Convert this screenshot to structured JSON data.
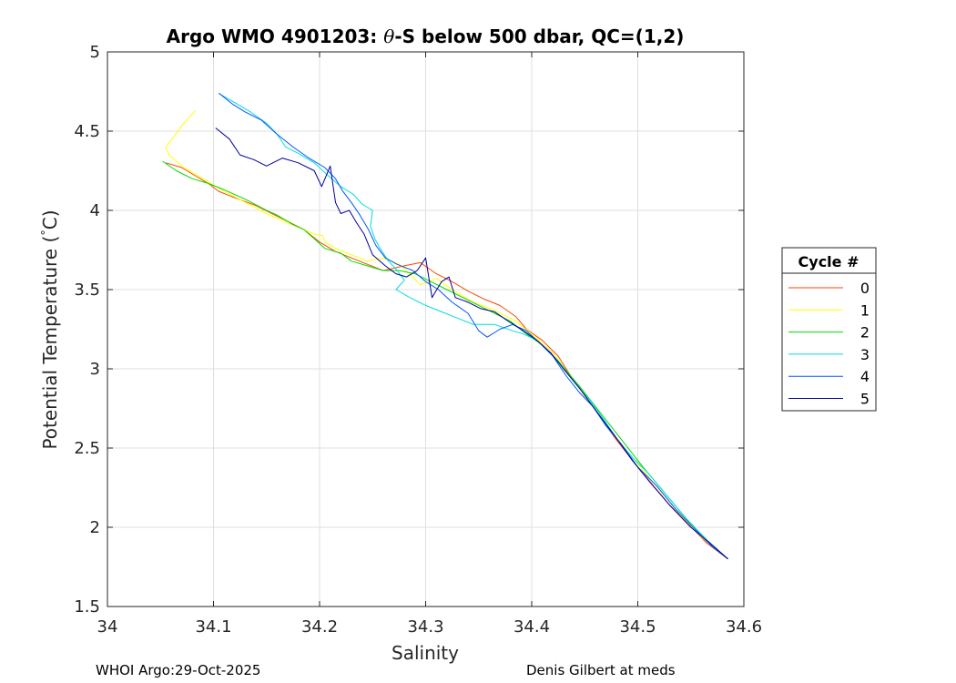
{
  "chart_data": {
    "type": "line",
    "title_prefix": "Argo WMO 4901203: ",
    "title_theta": "θ",
    "title_suffix": "-S below 500 dbar,  QC=(1,2)",
    "xlabel": "Salinity",
    "ylabel_prefix": "Potential Temperature (",
    "ylabel_degree": "°",
    "ylabel_suffix": "C)",
    "xlim": [
      34,
      34.6
    ],
    "ylim": [
      1.5,
      5
    ],
    "xticks": [
      "34",
      "34.1",
      "34.2",
      "34.3",
      "34.4",
      "34.5",
      "34.6"
    ],
    "yticks": [
      "1.5",
      "2",
      "2.5",
      "3",
      "3.5",
      "4",
      "4.5",
      "5"
    ],
    "grid": true,
    "legend": {
      "title": "Cycle #",
      "placement": "outside-right"
    },
    "series": [
      {
        "name": "0",
        "color": "#ff4400",
        "points": [
          [
            34.055,
            4.3
          ],
          [
            34.07,
            4.27
          ],
          [
            34.085,
            4.21
          ],
          [
            34.095,
            4.17
          ],
          [
            34.105,
            4.12
          ],
          [
            34.12,
            4.08
          ],
          [
            34.14,
            4.03
          ],
          [
            34.155,
            3.98
          ],
          [
            34.17,
            3.93
          ],
          [
            34.185,
            3.88
          ],
          [
            34.2,
            3.8
          ],
          [
            34.215,
            3.74
          ],
          [
            34.23,
            3.7
          ],
          [
            34.245,
            3.66
          ],
          [
            34.26,
            3.62
          ],
          [
            34.28,
            3.65
          ],
          [
            34.295,
            3.67
          ],
          [
            34.31,
            3.6
          ],
          [
            34.325,
            3.55
          ],
          [
            34.34,
            3.49
          ],
          [
            34.355,
            3.44
          ],
          [
            34.37,
            3.4
          ],
          [
            34.385,
            3.33
          ],
          [
            34.395,
            3.25
          ],
          [
            34.41,
            3.18
          ],
          [
            34.425,
            3.08
          ],
          [
            34.44,
            2.92
          ],
          [
            34.46,
            2.74
          ],
          [
            34.48,
            2.55
          ],
          [
            34.5,
            2.38
          ],
          [
            34.515,
            2.26
          ],
          [
            34.53,
            2.14
          ],
          [
            34.548,
            2.02
          ],
          [
            34.565,
            1.9
          ],
          [
            34.585,
            1.8
          ]
        ]
      },
      {
        "name": "1",
        "color": "#ffff00",
        "points": [
          [
            34.083,
            4.63
          ],
          [
            34.072,
            4.55
          ],
          [
            34.062,
            4.46
          ],
          [
            34.055,
            4.4
          ],
          [
            34.058,
            4.35
          ],
          [
            34.07,
            4.28
          ],
          [
            34.09,
            4.2
          ],
          [
            34.11,
            4.12
          ],
          [
            34.13,
            4.05
          ],
          [
            34.15,
            3.98
          ],
          [
            34.17,
            3.92
          ],
          [
            34.185,
            3.88
          ],
          [
            34.195,
            3.85
          ],
          [
            34.203,
            3.84
          ],
          [
            34.205,
            3.8
          ],
          [
            34.215,
            3.76
          ],
          [
            34.23,
            3.72
          ],
          [
            34.245,
            3.68
          ],
          [
            34.26,
            3.7
          ],
          [
            34.275,
            3.66
          ],
          [
            34.285,
            3.6
          ],
          [
            34.295,
            3.53
          ],
          [
            34.31,
            3.57
          ],
          [
            34.325,
            3.5
          ],
          [
            34.345,
            3.42
          ],
          [
            34.365,
            3.37
          ],
          [
            34.385,
            3.3
          ],
          [
            34.4,
            3.22
          ],
          [
            34.42,
            3.1
          ],
          [
            34.44,
            2.92
          ],
          [
            34.46,
            2.74
          ],
          [
            34.48,
            2.56
          ],
          [
            34.5,
            2.4
          ],
          [
            34.52,
            2.24
          ],
          [
            34.54,
            2.08
          ],
          [
            34.56,
            1.94
          ],
          [
            34.585,
            1.8
          ]
        ]
      },
      {
        "name": "2",
        "color": "#00dd00",
        "points": [
          [
            34.052,
            4.31
          ],
          [
            34.065,
            4.25
          ],
          [
            34.08,
            4.2
          ],
          [
            34.095,
            4.17
          ],
          [
            34.11,
            4.13
          ],
          [
            34.13,
            4.07
          ],
          [
            34.15,
            4.0
          ],
          [
            34.16,
            3.97
          ],
          [
            34.165,
            3.95
          ],
          [
            34.175,
            3.91
          ],
          [
            34.185,
            3.88
          ],
          [
            34.195,
            3.82
          ],
          [
            34.205,
            3.76
          ],
          [
            34.22,
            3.73
          ],
          [
            34.23,
            3.68
          ],
          [
            34.245,
            3.65
          ],
          [
            34.26,
            3.62
          ],
          [
            34.275,
            3.62
          ],
          [
            34.29,
            3.6
          ],
          [
            34.305,
            3.55
          ],
          [
            34.32,
            3.5
          ],
          [
            34.335,
            3.45
          ],
          [
            34.35,
            3.4
          ],
          [
            34.365,
            3.35
          ],
          [
            34.38,
            3.3
          ],
          [
            34.395,
            3.22
          ],
          [
            34.41,
            3.15
          ],
          [
            34.425,
            3.05
          ],
          [
            34.445,
            2.89
          ],
          [
            34.465,
            2.72
          ],
          [
            34.485,
            2.55
          ],
          [
            34.505,
            2.38
          ],
          [
            34.525,
            2.22
          ],
          [
            34.545,
            2.06
          ],
          [
            34.565,
            1.92
          ],
          [
            34.585,
            1.8
          ]
        ]
      },
      {
        "name": "3",
        "color": "#00dddd",
        "points": [
          [
            34.107,
            4.73
          ],
          [
            34.12,
            4.68
          ],
          [
            34.135,
            4.62
          ],
          [
            34.15,
            4.55
          ],
          [
            34.16,
            4.48
          ],
          [
            34.168,
            4.4
          ],
          [
            34.18,
            4.36
          ],
          [
            34.195,
            4.3
          ],
          [
            34.208,
            4.22
          ],
          [
            34.22,
            4.15
          ],
          [
            34.232,
            4.1
          ],
          [
            34.24,
            4.04
          ],
          [
            34.25,
            4.0
          ],
          [
            34.248,
            3.9
          ],
          [
            34.252,
            3.82
          ],
          [
            34.258,
            3.75
          ],
          [
            34.265,
            3.68
          ],
          [
            34.272,
            3.63
          ],
          [
            34.28,
            3.56
          ],
          [
            34.272,
            3.5
          ],
          [
            34.285,
            3.45
          ],
          [
            34.3,
            3.4
          ],
          [
            34.315,
            3.36
          ],
          [
            34.33,
            3.32
          ],
          [
            34.345,
            3.28
          ],
          [
            34.365,
            3.28
          ],
          [
            34.382,
            3.24
          ],
          [
            34.392,
            3.22
          ],
          [
            34.405,
            3.18
          ],
          [
            34.418,
            3.1
          ],
          [
            34.43,
            3.0
          ],
          [
            34.442,
            2.9
          ],
          [
            34.455,
            2.8
          ],
          [
            34.468,
            2.68
          ],
          [
            34.48,
            2.56
          ],
          [
            34.495,
            2.44
          ],
          [
            34.51,
            2.34
          ],
          [
            34.525,
            2.22
          ],
          [
            34.545,
            2.06
          ],
          [
            34.565,
            1.92
          ],
          [
            34.585,
            1.8
          ]
        ]
      },
      {
        "name": "4",
        "color": "#0055ff",
        "points": [
          [
            34.105,
            4.74
          ],
          [
            34.118,
            4.67
          ],
          [
            34.13,
            4.62
          ],
          [
            34.145,
            4.57
          ],
          [
            34.16,
            4.48
          ],
          [
            34.175,
            4.4
          ],
          [
            34.19,
            4.33
          ],
          [
            34.205,
            4.27
          ],
          [
            34.215,
            4.2
          ],
          [
            34.222,
            4.12
          ],
          [
            34.23,
            4.05
          ],
          [
            34.238,
            3.97
          ],
          [
            34.246,
            3.88
          ],
          [
            34.253,
            3.78
          ],
          [
            34.262,
            3.7
          ],
          [
            34.273,
            3.66
          ],
          [
            34.288,
            3.62
          ],
          [
            34.3,
            3.55
          ],
          [
            34.312,
            3.5
          ],
          [
            34.325,
            3.42
          ],
          [
            34.34,
            3.35
          ],
          [
            34.35,
            3.24
          ],
          [
            34.358,
            3.2
          ],
          [
            34.37,
            3.25
          ],
          [
            34.382,
            3.28
          ],
          [
            34.395,
            3.24
          ],
          [
            34.408,
            3.16
          ],
          [
            34.42,
            3.08
          ],
          [
            34.432,
            2.96
          ],
          [
            34.445,
            2.85
          ],
          [
            34.458,
            2.76
          ],
          [
            34.47,
            2.64
          ],
          [
            34.485,
            2.52
          ],
          [
            34.5,
            2.38
          ],
          [
            34.518,
            2.26
          ],
          [
            34.535,
            2.12
          ],
          [
            34.555,
            1.98
          ],
          [
            34.57,
            1.88
          ],
          [
            34.585,
            1.8
          ]
        ]
      },
      {
        "name": "5",
        "color": "#000099",
        "points": [
          [
            34.102,
            4.52
          ],
          [
            34.115,
            4.45
          ],
          [
            34.125,
            4.35
          ],
          [
            34.138,
            4.32
          ],
          [
            34.15,
            4.28
          ],
          [
            34.165,
            4.33
          ],
          [
            34.18,
            4.3
          ],
          [
            34.195,
            4.25
          ],
          [
            34.202,
            4.15
          ],
          [
            34.21,
            4.28
          ],
          [
            34.215,
            4.05
          ],
          [
            34.22,
            3.98
          ],
          [
            34.228,
            4.0
          ],
          [
            34.235,
            3.92
          ],
          [
            34.242,
            3.85
          ],
          [
            34.25,
            3.72
          ],
          [
            34.262,
            3.65
          ],
          [
            34.272,
            3.6
          ],
          [
            34.282,
            3.58
          ],
          [
            34.292,
            3.62
          ],
          [
            34.3,
            3.7
          ],
          [
            34.306,
            3.45
          ],
          [
            34.315,
            3.55
          ],
          [
            34.322,
            3.58
          ],
          [
            34.328,
            3.45
          ],
          [
            34.34,
            3.42
          ],
          [
            34.352,
            3.38
          ],
          [
            34.365,
            3.36
          ],
          [
            34.378,
            3.3
          ],
          [
            34.392,
            3.24
          ],
          [
            34.405,
            3.18
          ],
          [
            34.418,
            3.1
          ],
          [
            34.43,
            3.0
          ],
          [
            34.445,
            2.88
          ],
          [
            34.46,
            2.74
          ],
          [
            34.478,
            2.58
          ],
          [
            34.495,
            2.42
          ],
          [
            34.512,
            2.28
          ],
          [
            34.53,
            2.14
          ],
          [
            34.55,
            2.0
          ],
          [
            34.568,
            1.9
          ],
          [
            34.585,
            1.8
          ]
        ]
      }
    ]
  },
  "footer": {
    "left": "WHOI Argo:29-Oct-2025",
    "right": "Denis Gilbert at meds"
  }
}
